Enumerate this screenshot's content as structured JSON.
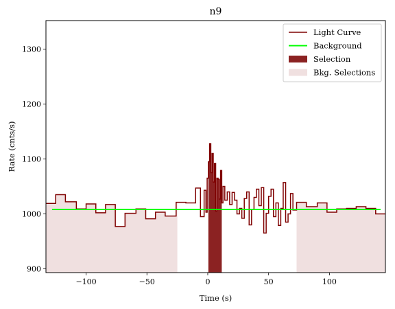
{
  "chart_data": {
    "type": "line",
    "title": "n9",
    "xlabel": "Time (s)",
    "ylabel": "Rate (cnts/s)",
    "xlim": [
      -133,
      146
    ],
    "ylim": [
      893,
      1352
    ],
    "x_ticks": [
      -100,
      -50,
      0,
      50,
      100
    ],
    "y_ticks": [
      900,
      1000,
      1100,
      1200,
      1300
    ],
    "x_tick_labels": [
      "−100",
      "−50",
      "0",
      "50",
      "100"
    ],
    "y_tick_labels": [
      "900",
      "1000",
      "1100",
      "1200",
      "1300"
    ],
    "grid": false,
    "legend_position": "top-right",
    "legend": [
      {
        "label": "Light Curve",
        "kind": "line",
        "color": "#7f0000"
      },
      {
        "label": "Background",
        "kind": "line",
        "color": "#00ff00"
      },
      {
        "label": "Selection",
        "kind": "patch",
        "color": "#8b2222"
      },
      {
        "label": "Bkg. Selections",
        "kind": "patch",
        "color": "#f0e0e0"
      }
    ],
    "series": [
      {
        "name": "Light Curve",
        "color": "#7f0000",
        "step": "post",
        "x": [
          -133,
          -125,
          -117,
          -108,
          -100,
          -92,
          -84,
          -76,
          -68,
          -59,
          -51,
          -43,
          -35,
          -26,
          -18,
          -10,
          -6,
          -3,
          -1.5,
          -0.5,
          0.5,
          1.5,
          2.5,
          3.5,
          4.5,
          5.5,
          6.5,
          7.5,
          8.5,
          9.5,
          10.5,
          11.5,
          12.5,
          14,
          16,
          18,
          20,
          22,
          24,
          26,
          28,
          30,
          32,
          34,
          36,
          38,
          40,
          42,
          44,
          46,
          48,
          50,
          52,
          54,
          56,
          58,
          60,
          62,
          64,
          66,
          68,
          70,
          73,
          81,
          90,
          98,
          106,
          114,
          122,
          130,
          138,
          146
        ],
        "y": [
          1019,
          1035,
          1022,
          1009,
          1018,
          1002,
          1017,
          977,
          1001,
          1009,
          991,
          1003,
          996,
          1021,
          1020,
          1047,
          995,
          1043,
          1003,
          1065,
          1095,
          1128,
          1075,
          1110,
          1058,
          1092,
          1005,
          1065,
          1063,
          1027,
          1079,
          1020,
          1050,
          1025,
          1040,
          1017,
          1039,
          1025,
          1000,
          1010,
          992,
          1028,
          1040,
          980,
          1008,
          1030,
          1045,
          1015,
          1048,
          965,
          1001,
          1032,
          1045,
          995,
          1020,
          979,
          1010,
          1057,
          985,
          1000,
          1037,
          1007,
          1021,
          1013,
          1020,
          1003,
          1009,
          1010,
          1013,
          1010,
          1000,
          1000
        ]
      },
      {
        "name": "Background",
        "color": "#00ff00",
        "x": [
          -128,
          142
        ],
        "y": [
          1008,
          1008
        ]
      }
    ],
    "selection": {
      "x_range": [
        0.5,
        11.5
      ],
      "color": "#8b2222"
    },
    "background_selections": {
      "x_ranges": [
        [
          -133,
          -25
        ],
        [
          73,
          146
        ]
      ],
      "color": "#f0e0e0"
    }
  }
}
